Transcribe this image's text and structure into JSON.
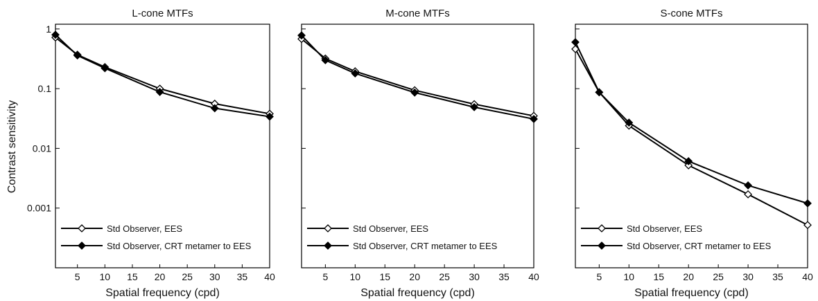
{
  "figure": {
    "ylabel": "Contrast sensitivity",
    "xlabel": "Spatial frequency (cpd)"
  },
  "chart_data": [
    {
      "type": "line",
      "title": "L-cone MTFs",
      "xlabel": "Spatial frequency (cpd)",
      "ylabel": "Contrast sensitivity",
      "xlim": [
        1,
        40
      ],
      "ylim": [
        0.0001,
        1.2
      ],
      "yscale": "log",
      "xticks": [
        5,
        10,
        15,
        20,
        25,
        30,
        35,
        40
      ],
      "yticks": [
        1,
        0.1,
        0.01,
        0.001
      ],
      "ytick_labels": [
        "1",
        "0.1",
        "0.01",
        "0.001"
      ],
      "grid": false,
      "legend": "bottom-left",
      "series": [
        {
          "name": "Std Observer, EES",
          "marker": "open-diamond",
          "x": [
            1,
            5,
            10,
            20,
            30,
            40
          ],
          "y": [
            0.72,
            0.37,
            0.23,
            0.1,
            0.056,
            0.038
          ]
        },
        {
          "name": "Std Observer, CRT metamer to EES",
          "marker": "filled-diamond",
          "x": [
            1,
            5,
            10,
            20,
            30,
            40
          ],
          "y": [
            0.8,
            0.36,
            0.22,
            0.088,
            0.047,
            0.034
          ]
        }
      ]
    },
    {
      "type": "line",
      "title": "M-cone MTFs",
      "xlabel": "Spatial frequency (cpd)",
      "ylabel": "",
      "xlim": [
        1,
        40
      ],
      "ylim": [
        0.0001,
        1.2
      ],
      "yscale": "log",
      "xticks": [
        5,
        10,
        15,
        20,
        25,
        30,
        35,
        40
      ],
      "yticks": [
        1,
        0.1,
        0.01,
        0.001
      ],
      "ytick_labels": [],
      "grid": false,
      "legend": "bottom-left",
      "series": [
        {
          "name": "Std Observer, EES",
          "marker": "open-diamond",
          "x": [
            1,
            5,
            10,
            20,
            30,
            40
          ],
          "y": [
            0.68,
            0.32,
            0.195,
            0.094,
            0.055,
            0.035
          ]
        },
        {
          "name": "Std Observer, CRT metamer to EES",
          "marker": "filled-diamond",
          "x": [
            1,
            5,
            10,
            20,
            30,
            40
          ],
          "y": [
            0.78,
            0.3,
            0.18,
            0.086,
            0.049,
            0.031
          ]
        }
      ]
    },
    {
      "type": "line",
      "title": "S-cone MTFs",
      "xlabel": "Spatial frequency (cpd)",
      "ylabel": "",
      "xlim": [
        1,
        40
      ],
      "ylim": [
        0.0001,
        1.2
      ],
      "yscale": "log",
      "xticks": [
        5,
        10,
        15,
        20,
        25,
        30,
        35,
        40
      ],
      "yticks": [
        1,
        0.1,
        0.01,
        0.001
      ],
      "ytick_labels": [],
      "grid": false,
      "legend": "bottom-left",
      "series": [
        {
          "name": "Std Observer, EES",
          "marker": "open-diamond",
          "x": [
            1,
            5,
            10,
            20,
            30,
            40
          ],
          "y": [
            0.46,
            0.087,
            0.024,
            0.0052,
            0.0017,
            0.00052
          ]
        },
        {
          "name": "Std Observer, CRT metamer to EES",
          "marker": "filled-diamond",
          "x": [
            1,
            5,
            10,
            20,
            30,
            40
          ],
          "y": [
            0.6,
            0.087,
            0.027,
            0.0061,
            0.0024,
            0.0012
          ]
        }
      ]
    }
  ]
}
